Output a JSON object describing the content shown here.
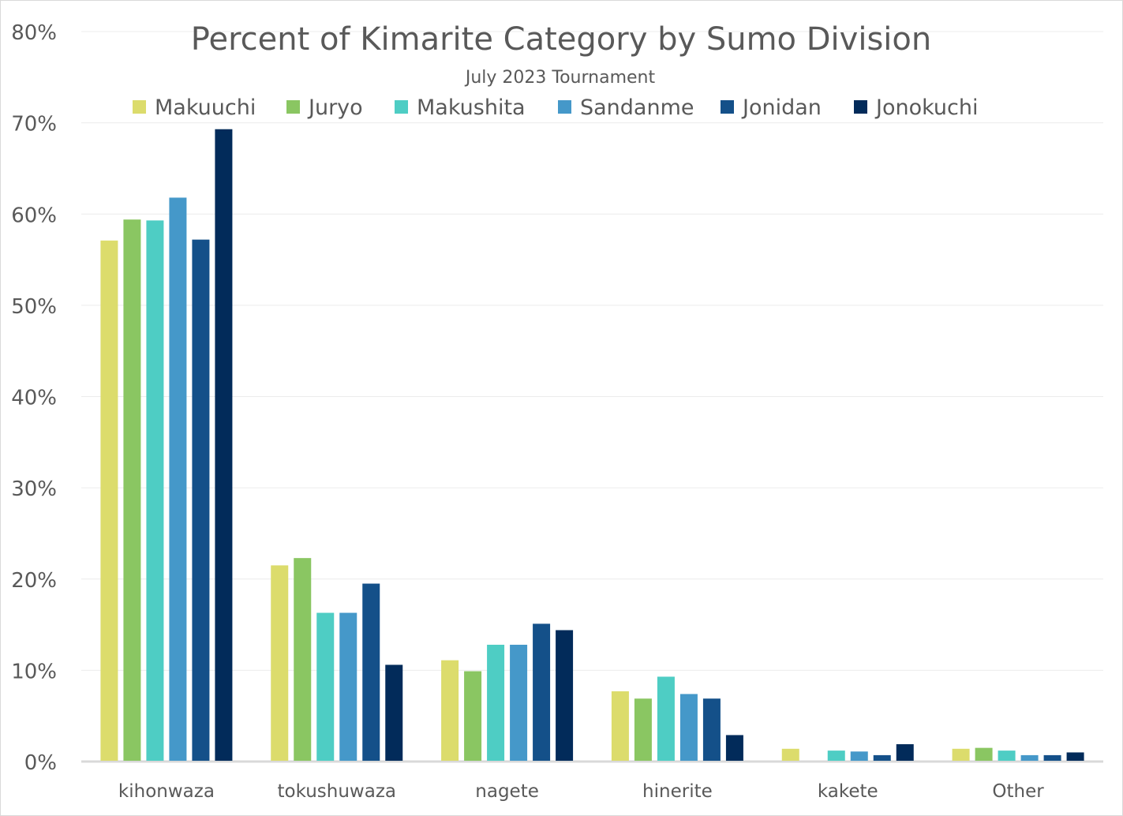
{
  "chart_data": {
    "type": "bar",
    "title": "Percent of Kimarite Category by Sumo Division",
    "subtitle": "July 2023 Tournament",
    "xlabel": "",
    "ylabel": "",
    "ylim": [
      0,
      80
    ],
    "yticks": [
      "0%",
      "10%",
      "20%",
      "30%",
      "40%",
      "50%",
      "60%",
      "70%",
      "80%"
    ],
    "grid": true,
    "legend": "top",
    "categories": [
      "kihonwaza",
      "tokushuwaza",
      "nagete",
      "hinerite",
      "kakete",
      "Other"
    ],
    "series": [
      {
        "name": "Makuuchi",
        "color": "#dcdc6c",
        "values": [
          57.1,
          21.5,
          11.1,
          7.7,
          1.4,
          1.4
        ]
      },
      {
        "name": "Juryo",
        "color": "#8ac662",
        "values": [
          59.4,
          22.3,
          9.9,
          6.9,
          0,
          1.5
        ]
      },
      {
        "name": "Makushita",
        "color": "#4ecdc4",
        "values": [
          59.3,
          16.3,
          12.8,
          9.3,
          1.2,
          1.2
        ]
      },
      {
        "name": "Sandanme",
        "color": "#4598c9",
        "values": [
          61.8,
          16.3,
          12.8,
          7.4,
          1.1,
          0.7
        ]
      },
      {
        "name": "Jonidan",
        "color": "#145089",
        "values": [
          57.2,
          19.5,
          15.1,
          6.9,
          0.7,
          0.7
        ]
      },
      {
        "name": "Jonokuchi",
        "color": "#022b5a",
        "values": [
          69.3,
          10.6,
          14.4,
          2.9,
          1.9,
          1.0
        ]
      }
    ]
  }
}
